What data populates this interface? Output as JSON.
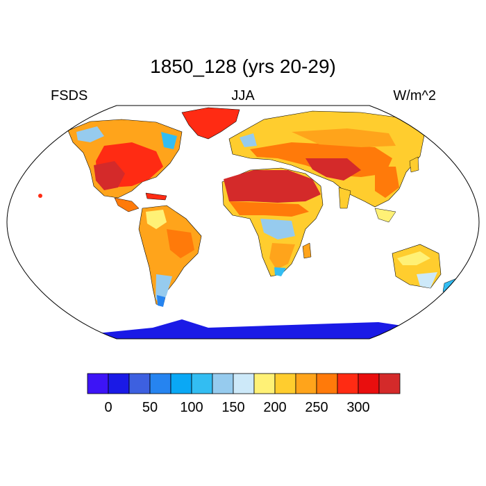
{
  "header": {
    "title": "1850_128 (yrs 20-29)",
    "variable": "FSDS",
    "season": "JJA",
    "units": "W/m^2"
  },
  "map": {
    "projection": "Robinson",
    "field": "surface downwelling solar radiation (land only)"
  },
  "colorbar": {
    "colors": [
      "#3d14f6",
      "#1a1ae6",
      "#3d60e0",
      "#2684f0",
      "#0aa8f5",
      "#33bdf2",
      "#96cbee",
      "#cde9f9",
      "#fff176",
      "#ffcd2e",
      "#ffa41b",
      "#ff7a0a",
      "#ff2b13",
      "#e90e0e",
      "#d42a2a"
    ],
    "tick_labels": [
      "0",
      "50",
      "100",
      "150",
      "200",
      "250",
      "300"
    ]
  }
}
